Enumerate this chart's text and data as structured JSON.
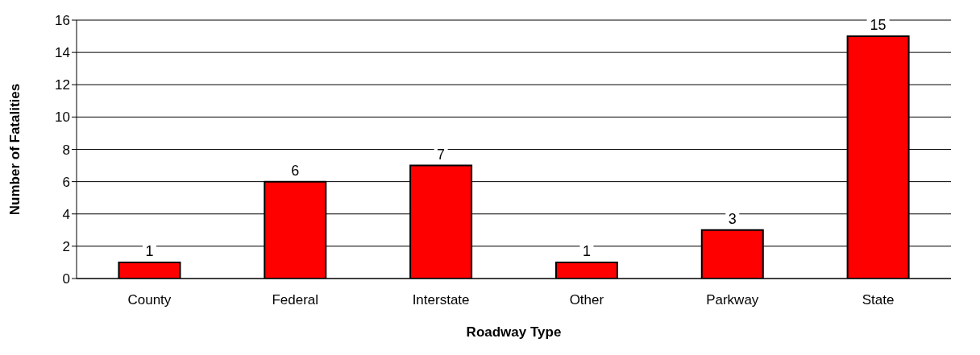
{
  "chart_data": {
    "type": "bar",
    "xlabel": "Roadway Type",
    "ylabel": "Number of Fatalities",
    "categories": [
      "County",
      "Federal",
      "Interstate",
      "Other",
      "Parkway",
      "State"
    ],
    "values": [
      1,
      6,
      7,
      1,
      3,
      15
    ],
    "color": "#ff0000",
    "ylim": [
      0,
      16
    ],
    "yticks": [
      0,
      2,
      4,
      6,
      8,
      10,
      12,
      14,
      16
    ],
    "grid": "y",
    "data_labels": true
  }
}
